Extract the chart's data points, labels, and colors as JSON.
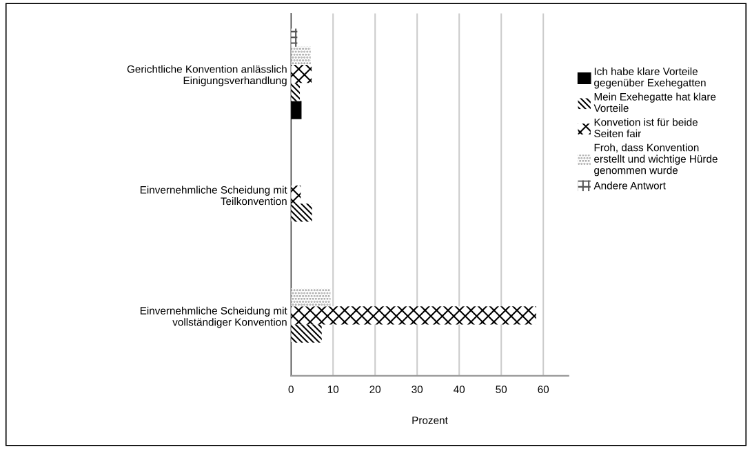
{
  "chart_data": {
    "type": "bar",
    "orientation": "horizontal",
    "xlabel": "Prozent",
    "categories": [
      "Gerichtliche Konvention anlässlich\nEinigungsverhandlung",
      "Einvernehmliche Scheidung mit\nTeilkonvention",
      "Einvernehmliche Scheidung mit\nvollständiger Konvention"
    ],
    "series": [
      {
        "name": "Ich habe klare Vorteile\ngegenüber Exehegatten",
        "color": "#000000",
        "values": [
          2.5,
          0,
          0
        ]
      },
      {
        "name": "Mein Exehegatte hat klare\nVorteile",
        "color": "#000000",
        "values": [
          2.1,
          5.0,
          7.3
        ]
      },
      {
        "name": "Konvetion ist für beide\nSeiten fair",
        "color": "#000000",
        "values": [
          4.9,
          2.3,
          58.3
        ]
      },
      {
        "name": "Froh, dass Konvention\nerstellt und wichtige Hürde\ngenommen wurde",
        "color": "#9a9a9a",
        "values": [
          4.7,
          0,
          9.4
        ]
      },
      {
        "name": "Andere Antwort",
        "color": "#555555",
        "values": [
          1.5,
          0,
          0
        ]
      }
    ],
    "xlim": [
      0,
      66
    ],
    "xticks": [
      0,
      10,
      20,
      30,
      40,
      50,
      60
    ],
    "grid": "x",
    "legend": "right"
  }
}
